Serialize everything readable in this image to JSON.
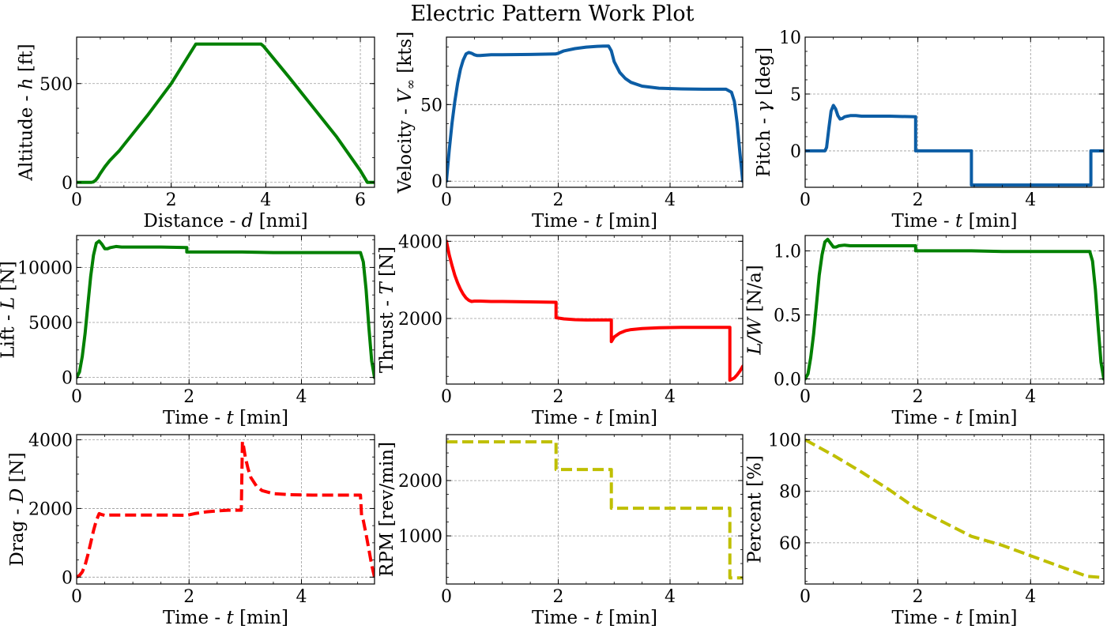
{
  "figure": {
    "title": "Electric Pattern Work Plot"
  },
  "colors": {
    "green": "#008000",
    "blue": "#0C5DA5",
    "red": "#FF0000",
    "yellow": "#BFBF00",
    "grid": "#9a9a9a"
  },
  "chart_data": [
    {
      "type": "line",
      "id": "altitude",
      "xlabel": "Distance - d [nmi]",
      "ylabel": "Altitude - h [ft]",
      "xlim": [
        0,
        6.3
      ],
      "ylim": [
        -25,
        735
      ],
      "xticks": [
        0,
        2,
        4,
        6
      ],
      "xticklabels": [
        "0",
        "2",
        "4",
        "6"
      ],
      "yticks": [
        0,
        500
      ],
      "yticklabels": [
        "0",
        "500"
      ],
      "grid": true,
      "series": [
        {
          "color": "green",
          "style": "solid",
          "x": [
            0,
            0.3,
            0.35,
            0.4,
            0.45,
            0.5,
            0.6,
            0.7,
            0.8,
            0.9,
            1.0,
            1.5,
            2.0,
            2.52,
            2.55,
            3.9,
            3.95,
            4.5,
            5.0,
            5.5,
            6.0,
            6.15,
            6.3
          ],
          "y": [
            0,
            0,
            2,
            10,
            25,
            45,
            80,
            110,
            135,
            160,
            190,
            340,
            500,
            700,
            700,
            700,
            690,
            530,
            380,
            230,
            60,
            0,
            0
          ]
        }
      ]
    },
    {
      "type": "line",
      "id": "velocity",
      "xlabel": "Time - t [min]",
      "ylabel": "Velocity - V∞ [kts]",
      "xlim": [
        0,
        5.3
      ],
      "ylim": [
        -4,
        94
      ],
      "xticks": [
        0,
        2,
        4
      ],
      "xticklabels": [
        "0",
        "2",
        "4"
      ],
      "yticks": [
        0,
        50
      ],
      "yticklabels": [
        "0",
        "50"
      ],
      "grid": true,
      "series": [
        {
          "color": "blue",
          "style": "solid",
          "x": [
            0,
            0.05,
            0.1,
            0.15,
            0.2,
            0.25,
            0.3,
            0.35,
            0.4,
            0.45,
            0.5,
            0.55,
            0.6,
            0.7,
            0.8,
            1.0,
            1.5,
            1.95,
            2.0,
            2.1,
            2.3,
            2.5,
            2.7,
            2.9,
            2.95,
            3.0,
            3.1,
            3.2,
            3.3,
            3.5,
            3.8,
            4.2,
            4.6,
            5.0,
            5.1,
            5.15,
            5.2,
            5.25,
            5.3
          ],
          "y": [
            0,
            20,
            38,
            52,
            64,
            73,
            79,
            83,
            84,
            83.5,
            82.5,
            82,
            82,
            82.3,
            82.5,
            82.5,
            82.7,
            83,
            83.5,
            85,
            86.5,
            87.5,
            88,
            88.2,
            85,
            78,
            71,
            67,
            64.5,
            62,
            60.7,
            60.2,
            60,
            60,
            58,
            52,
            38,
            18,
            0
          ]
        }
      ]
    },
    {
      "type": "line",
      "id": "pitch",
      "xlabel": "Time - t [min]",
      "ylabel": "Pitch - γ [deg]",
      "xlim": [
        0,
        5.3
      ],
      "ylim": [
        -3.2,
        10
      ],
      "xticks": [
        0,
        2,
        4
      ],
      "xticklabels": [
        "0",
        "2",
        "4"
      ],
      "yticks": [
        0,
        5,
        10
      ],
      "yticklabels": [
        "0",
        "5",
        "10"
      ],
      "grid": true,
      "series": [
        {
          "color": "blue",
          "style": "solid",
          "x": [
            0,
            0.35,
            0.38,
            0.42,
            0.46,
            0.5,
            0.54,
            0.58,
            0.62,
            0.66,
            0.7,
            0.75,
            0.8,
            0.9,
            1.0,
            1.5,
            1.96,
            1.96,
            2.95,
            2.95,
            5.07,
            5.07,
            5.3
          ],
          "y": [
            0,
            0,
            0.3,
            2.0,
            3.5,
            4.0,
            3.7,
            3.1,
            2.8,
            2.85,
            3.0,
            3.05,
            3.1,
            3.1,
            3.05,
            3.05,
            3.0,
            0,
            0,
            -3.0,
            -3.0,
            0,
            0
          ]
        }
      ]
    },
    {
      "type": "line",
      "id": "lift",
      "xlabel": "Time - t [min]",
      "ylabel": "Lift - L [N]",
      "xlim": [
        0,
        5.3
      ],
      "ylim": [
        -600,
        12900
      ],
      "xticks": [
        0,
        2,
        4
      ],
      "xticklabels": [
        "0",
        "2",
        "4"
      ],
      "yticks": [
        0,
        5000,
        10000
      ],
      "yticklabels": [
        "0",
        "5000",
        "10000"
      ],
      "grid": true,
      "series": [
        {
          "color": "green",
          "style": "solid",
          "x": [
            0,
            0.05,
            0.1,
            0.15,
            0.2,
            0.25,
            0.3,
            0.35,
            0.4,
            0.45,
            0.5,
            0.55,
            0.6,
            0.7,
            0.8,
            1.0,
            1.5,
            1.96,
            1.96,
            2.5,
            2.95,
            3.5,
            4.0,
            4.5,
            5.05,
            5.1,
            5.15,
            5.2,
            5.25,
            5.3
          ],
          "y": [
            0,
            500,
            1900,
            4000,
            6600,
            9200,
            11100,
            12200,
            12400,
            12100,
            11700,
            11700,
            11800,
            11900,
            11850,
            11850,
            11850,
            11800,
            11400,
            11400,
            11400,
            11350,
            11350,
            11350,
            11350,
            10500,
            8000,
            4500,
            1500,
            0
          ]
        }
      ]
    },
    {
      "type": "line",
      "id": "thrust",
      "xlabel": "Time - t [min]",
      "ylabel": "Thrust - T [N]",
      "xlim": [
        0,
        5.3
      ],
      "ylim": [
        300,
        4150
      ],
      "xticks": [
        0,
        2,
        4
      ],
      "xticklabels": [
        "0",
        "2",
        "4"
      ],
      "yticks": [
        2000,
        4000
      ],
      "yticklabels": [
        "2000",
        "4000"
      ],
      "grid": true,
      "series": [
        {
          "color": "red",
          "style": "solid",
          "x": [
            0,
            0.05,
            0.1,
            0.15,
            0.2,
            0.25,
            0.3,
            0.35,
            0.4,
            0.45,
            0.5,
            0.6,
            0.8,
            1.0,
            1.5,
            1.96,
            1.96,
            2.1,
            2.3,
            2.5,
            2.95,
            2.95,
            3.0,
            3.1,
            3.2,
            3.3,
            3.5,
            3.8,
            4.2,
            4.6,
            5.07,
            5.07,
            5.15,
            5.2,
            5.25,
            5.3
          ],
          "y": [
            4000,
            3650,
            3370,
            3120,
            2920,
            2760,
            2630,
            2530,
            2470,
            2440,
            2450,
            2450,
            2440,
            2440,
            2430,
            2420,
            2020,
            1990,
            1970,
            1960,
            1960,
            1400,
            1520,
            1620,
            1680,
            1710,
            1740,
            1760,
            1770,
            1770,
            1770,
            400,
            460,
            540,
            640,
            760
          ]
        }
      ]
    },
    {
      "type": "line",
      "id": "load-factor",
      "xlabel": "Time - t [min]",
      "ylabel": "L/W [N/a]",
      "xlim": [
        0,
        5.3
      ],
      "ylim": [
        -0.04,
        1.12
      ],
      "xticks": [
        0,
        2,
        4
      ],
      "xticklabels": [
        "0",
        "2",
        "4"
      ],
      "yticks": [
        0.0,
        0.5,
        1.0
      ],
      "yticklabels": [
        "0.0",
        "0.5",
        "1.0"
      ],
      "grid": true,
      "series": [
        {
          "color": "green",
          "style": "solid",
          "x": [
            0,
            0.05,
            0.1,
            0.15,
            0.2,
            0.25,
            0.3,
            0.35,
            0.4,
            0.45,
            0.5,
            0.55,
            0.6,
            0.7,
            0.8,
            1.0,
            1.5,
            1.96,
            1.96,
            2.5,
            2.95,
            3.5,
            4.0,
            4.5,
            5.05,
            5.1,
            5.15,
            5.2,
            5.25,
            5.3
          ],
          "y": [
            0,
            0.04,
            0.17,
            0.35,
            0.58,
            0.81,
            0.97,
            1.07,
            1.09,
            1.06,
            1.03,
            1.03,
            1.04,
            1.045,
            1.04,
            1.04,
            1.04,
            1.04,
            1.0,
            1.0,
            1.0,
            0.995,
            0.995,
            0.995,
            0.995,
            0.92,
            0.7,
            0.4,
            0.13,
            0
          ]
        }
      ]
    },
    {
      "type": "line",
      "id": "drag",
      "xlabel": "Time - t [min]",
      "ylabel": "Drag - D [N]",
      "xlim": [
        0,
        5.3
      ],
      "ylim": [
        -200,
        4150
      ],
      "xticks": [
        0,
        2,
        4
      ],
      "xticklabels": [
        "0",
        "2",
        "4"
      ],
      "yticks": [
        0,
        2000,
        4000
      ],
      "yticklabels": [
        "0",
        "2000",
        "4000"
      ],
      "grid": true,
      "series": [
        {
          "color": "red",
          "style": "dashed",
          "x": [
            0,
            0.05,
            0.1,
            0.15,
            0.2,
            0.25,
            0.3,
            0.35,
            0.4,
            0.45,
            0.5,
            0.6,
            0.8,
            1.0,
            1.5,
            1.96,
            2.1,
            2.3,
            2.5,
            2.7,
            2.93,
            2.95,
            2.97,
            3.0,
            3.05,
            3.1,
            3.2,
            3.3,
            3.5,
            3.8,
            4.2,
            4.6,
            5.05,
            5.07,
            5.1,
            5.15,
            5.2,
            5.25,
            5.3
          ],
          "y": [
            0,
            50,
            150,
            350,
            650,
            1000,
            1350,
            1650,
            1850,
            1820,
            1800,
            1810,
            1810,
            1810,
            1810,
            1800,
            1850,
            1900,
            1930,
            1950,
            1950,
            3950,
            3800,
            3500,
            3150,
            2900,
            2650,
            2520,
            2430,
            2400,
            2390,
            2390,
            2390,
            1800,
            1650,
            1250,
            800,
            350,
            0
          ]
        }
      ]
    },
    {
      "type": "line",
      "id": "rpm",
      "xlabel": "Time - t [min]",
      "ylabel": "RPM [rev/min]",
      "xlim": [
        0,
        5.3
      ],
      "ylim": [
        130,
        2830
      ],
      "xticks": [
        0,
        2,
        4
      ],
      "xticklabels": [
        "0",
        "2",
        "4"
      ],
      "yticks": [
        1000,
        2000
      ],
      "yticklabels": [
        "1000",
        "2000"
      ],
      "grid": true,
      "series": [
        {
          "color": "yellow",
          "style": "dashed",
          "x": [
            0,
            1.96,
            1.96,
            2.95,
            2.95,
            5.07,
            5.07,
            5.3
          ],
          "y": [
            2700,
            2700,
            2200,
            2200,
            1500,
            1500,
            240,
            240
          ]
        }
      ]
    },
    {
      "type": "line",
      "id": "battery-percent",
      "xlabel": "Time - t [min]",
      "ylabel": "Percent [%]",
      "xlim": [
        0,
        5.3
      ],
      "ylim": [
        44,
        102
      ],
      "xticks": [
        0,
        2,
        4
      ],
      "xticklabels": [
        "0",
        "2",
        "4"
      ],
      "yticks": [
        60,
        80,
        100
      ],
      "yticklabels": [
        "60",
        "80",
        "100"
      ],
      "grid": true,
      "series": [
        {
          "color": "yellow",
          "style": "dashed",
          "x": [
            0,
            0.5,
            1.0,
            1.5,
            1.96,
            2.5,
            2.95,
            3.5,
            4.0,
            4.5,
            5.0,
            5.3
          ],
          "y": [
            100,
            94,
            87.5,
            80.5,
            73.5,
            67.5,
            62.5,
            59,
            55,
            51,
            47,
            46.5
          ]
        }
      ]
    }
  ]
}
